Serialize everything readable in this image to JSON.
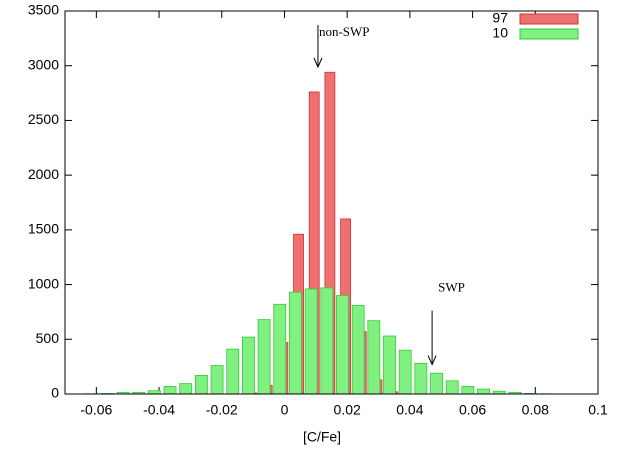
{
  "chart_data": {
    "type": "bar",
    "xlabel": "[C/Fe]",
    "x": [
      -0.065,
      -0.06,
      -0.055,
      -0.05,
      -0.045,
      -0.04,
      -0.035,
      -0.03,
      -0.025,
      -0.02,
      -0.015,
      -0.01,
      -0.005,
      0,
      0.005,
      0.01,
      0.015,
      0.02,
      0.025,
      0.03,
      0.035,
      0.04,
      0.045,
      0.05,
      0.055,
      0.06,
      0.065,
      0.07,
      0.075,
      0.08,
      0.085,
      0.09,
      0.095
    ],
    "series": [
      {
        "name": "97",
        "color": "#f07070",
        "values": [
          0,
          0,
          0,
          0,
          0,
          0,
          0,
          0,
          0,
          0,
          0,
          10,
          80,
          470,
          1460,
          2760,
          2940,
          1600,
          570,
          130,
          20,
          0,
          0,
          0,
          0,
          0,
          0,
          0,
          0,
          0,
          0,
          0,
          0
        ]
      },
      {
        "name": "10",
        "color": "#80f080",
        "values": [
          0,
          2,
          5,
          15,
          15,
          30,
          70,
          95,
          170,
          260,
          410,
          520,
          680,
          820,
          930,
          960,
          970,
          900,
          810,
          670,
          530,
          400,
          280,
          190,
          120,
          70,
          45,
          25,
          15,
          5,
          2,
          0,
          0
        ]
      }
    ],
    "xlim": [
      -0.07,
      0.1
    ],
    "xticks": [
      -0.06,
      -0.04,
      -0.02,
      0,
      0.02,
      0.04,
      0.06,
      0.08,
      0.1
    ],
    "ylim": [
      0,
      3500
    ],
    "yticks": [
      0,
      500,
      1000,
      1500,
      2000,
      2500,
      3000,
      3500
    ],
    "legend": "top-right",
    "annotations": [
      {
        "text": "non-SWP",
        "x": 0.011,
        "y": 3500
      },
      {
        "text": "SWP",
        "x": 0.049,
        "y": 1000
      }
    ]
  }
}
